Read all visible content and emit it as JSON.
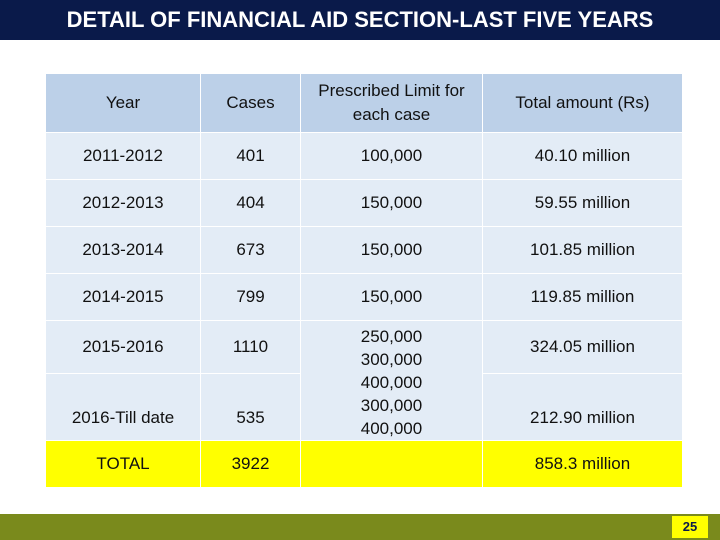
{
  "slide": {
    "title": "DETAIL OF FINANCIAL AID SECTION-LAST FIVE YEARS",
    "page_number": "25"
  },
  "table": {
    "headers": [
      "Year",
      "Cases",
      "Prescribed Limit for each case",
      "Total amount (Rs)"
    ],
    "rows": [
      {
        "year": "2011-2012",
        "cases": "401",
        "limit": "100,000",
        "total": "40.10 million"
      },
      {
        "year": "2012-2013",
        "cases": "404",
        "limit": "150,000",
        "total": "59.55 million"
      },
      {
        "year": "2013-2014",
        "cases": "673",
        "limit": "150,000",
        "total": "101.85 million"
      },
      {
        "year": "2014-2015",
        "cases": "799",
        "limit": "150,000",
        "total": "119.85 million"
      },
      {
        "year": "2015-2016",
        "cases": "1110",
        "total": "324.05 million"
      },
      {
        "year": "2016-Till date",
        "cases": "535",
        "total": "212.90 million"
      }
    ],
    "merged_limits": [
      "250,000",
      "300,000",
      "400,000",
      "300,000",
      "400,000"
    ],
    "total_row": {
      "label": "TOTAL",
      "cases": "3922",
      "limit": "",
      "total": "858.3 million"
    }
  },
  "colors": {
    "title_background": "#0a1a4a",
    "header_cell": "#bcd0e8",
    "body_cell": "#e3ecf6",
    "total_row": "#ffff00",
    "bottom_bar": "#7a8a1c"
  }
}
